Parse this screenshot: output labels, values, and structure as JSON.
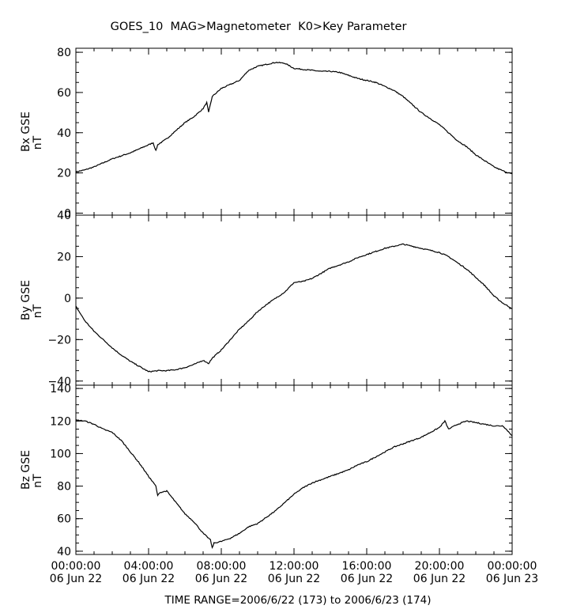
{
  "header": {
    "title": "GOES_10  MAG>Magnetometer  K0>Key Parameter"
  },
  "footer": {
    "time_range": "TIME RANGE=2006/6/22 (173) to 2006/6/23 (174)"
  },
  "x_axis": {
    "range_hours": [
      0,
      24
    ],
    "ticks": [
      {
        "hour": 0,
        "time": "00:00:00",
        "date": "06 Jun 22"
      },
      {
        "hour": 4,
        "time": "04:00:00",
        "date": "06 Jun 22"
      },
      {
        "hour": 8,
        "time": "08:00:00",
        "date": "06 Jun 22"
      },
      {
        "hour": 12,
        "time": "12:00:00",
        "date": "06 Jun 22"
      },
      {
        "hour": 16,
        "time": "16:00:00",
        "date": "06 Jun 22"
      },
      {
        "hour": 20,
        "time": "20:00:00",
        "date": "06 Jun 22"
      },
      {
        "hour": 24,
        "time": "00:00:00",
        "date": "06 Jun 23"
      }
    ]
  },
  "chart_data": [
    {
      "type": "line",
      "ylabel": "Bx GSE",
      "yunit": "nT",
      "ylim": [
        -1,
        82
      ],
      "yticks": [
        0,
        20,
        40,
        60,
        80
      ],
      "x": [
        0,
        0.5,
        1,
        1.5,
        2,
        2.5,
        3,
        3.5,
        4,
        4.25,
        4.4,
        4.5,
        5,
        5.5,
        6,
        6.5,
        7,
        7.2,
        7.3,
        7.4,
        7.5,
        8,
        8.5,
        9,
        9.5,
        10,
        10.5,
        11,
        11.5,
        12,
        12.5,
        13,
        13.5,
        14,
        14.5,
        15,
        15.5,
        16,
        16.5,
        17,
        17.5,
        18,
        18.5,
        19,
        19.5,
        20,
        20.5,
        21,
        21.5,
        22,
        22.5,
        23,
        23.5,
        24
      ],
      "y": [
        20.5,
        21.5,
        23,
        25,
        27,
        28.5,
        30,
        32,
        34,
        35,
        31,
        34,
        37,
        41,
        45,
        48,
        52,
        55,
        50,
        54,
        58,
        62,
        64,
        66,
        71,
        73,
        74,
        75,
        74.5,
        72,
        71.5,
        71,
        70.5,
        70.5,
        70,
        68.5,
        67,
        66,
        65,
        63,
        61,
        58,
        54,
        50,
        47,
        44,
        40,
        36,
        33,
        29,
        26,
        23,
        21,
        19.5
      ]
    },
    {
      "type": "line",
      "ylabel": "By GSE",
      "yunit": "nT",
      "ylim": [
        -42,
        40
      ],
      "yticks": [
        -40,
        -20,
        0,
        20,
        40
      ],
      "x": [
        0,
        0.5,
        1,
        1.5,
        2,
        2.5,
        3,
        3.5,
        4,
        4.5,
        5,
        5.5,
        6,
        6.5,
        7,
        7.3,
        7.5,
        8,
        8.5,
        9,
        9.5,
        10,
        10.5,
        11,
        11.5,
        12,
        12.5,
        13,
        13.5,
        14,
        14.5,
        15,
        15.5,
        16,
        16.5,
        17,
        17.5,
        18,
        18.5,
        19,
        19.5,
        20,
        20.5,
        21,
        21.5,
        22,
        22.5,
        23,
        23.5,
        24
      ],
      "y": [
        -4,
        -11,
        -16,
        -20,
        -24,
        -27.5,
        -30.5,
        -33,
        -35.5,
        -35,
        -35,
        -34.5,
        -33.5,
        -32,
        -30,
        -31.5,
        -29,
        -25,
        -20,
        -15,
        -11,
        -6.5,
        -3,
        0,
        3,
        7.5,
        8,
        9.5,
        12,
        14.5,
        16,
        17.5,
        19.5,
        21,
        22.5,
        24,
        25,
        26,
        25,
        24,
        23,
        22,
        20,
        17,
        14,
        10,
        6,
        1,
        -2.5,
        -5
      ]
    },
    {
      "type": "line",
      "ylabel": "Bz GSE",
      "yunit": "nT",
      "ylim": [
        38,
        142
      ],
      "yticks": [
        40,
        60,
        80,
        100,
        120,
        140
      ],
      "x": [
        0,
        0.5,
        1,
        1.5,
        2,
        2.5,
        3,
        3.5,
        4,
        4.4,
        4.5,
        4.6,
        5,
        5.5,
        6,
        6.5,
        7,
        7.4,
        7.5,
        7.6,
        8,
        8.5,
        9,
        9.5,
        10,
        10.5,
        11,
        11.5,
        12,
        12.5,
        13,
        13.5,
        14,
        14.5,
        15,
        15.5,
        16,
        16.5,
        17,
        17.5,
        18,
        18.5,
        19,
        19.5,
        20,
        20.3,
        20.5,
        21,
        21.5,
        22,
        22.5,
        23,
        23.5,
        24
      ],
      "y": [
        120.5,
        120,
        118,
        115,
        113,
        108,
        101,
        94,
        86,
        80,
        74,
        76,
        77,
        70,
        63,
        58,
        51,
        47,
        42,
        45,
        46,
        48,
        51,
        55,
        57,
        61,
        65,
        70,
        75,
        79,
        82,
        84,
        86,
        88,
        90,
        93,
        95,
        98,
        101,
        104,
        106,
        108,
        110,
        113,
        116,
        120,
        115,
        118,
        120,
        119,
        118,
        117,
        117,
        111
      ]
    }
  ]
}
